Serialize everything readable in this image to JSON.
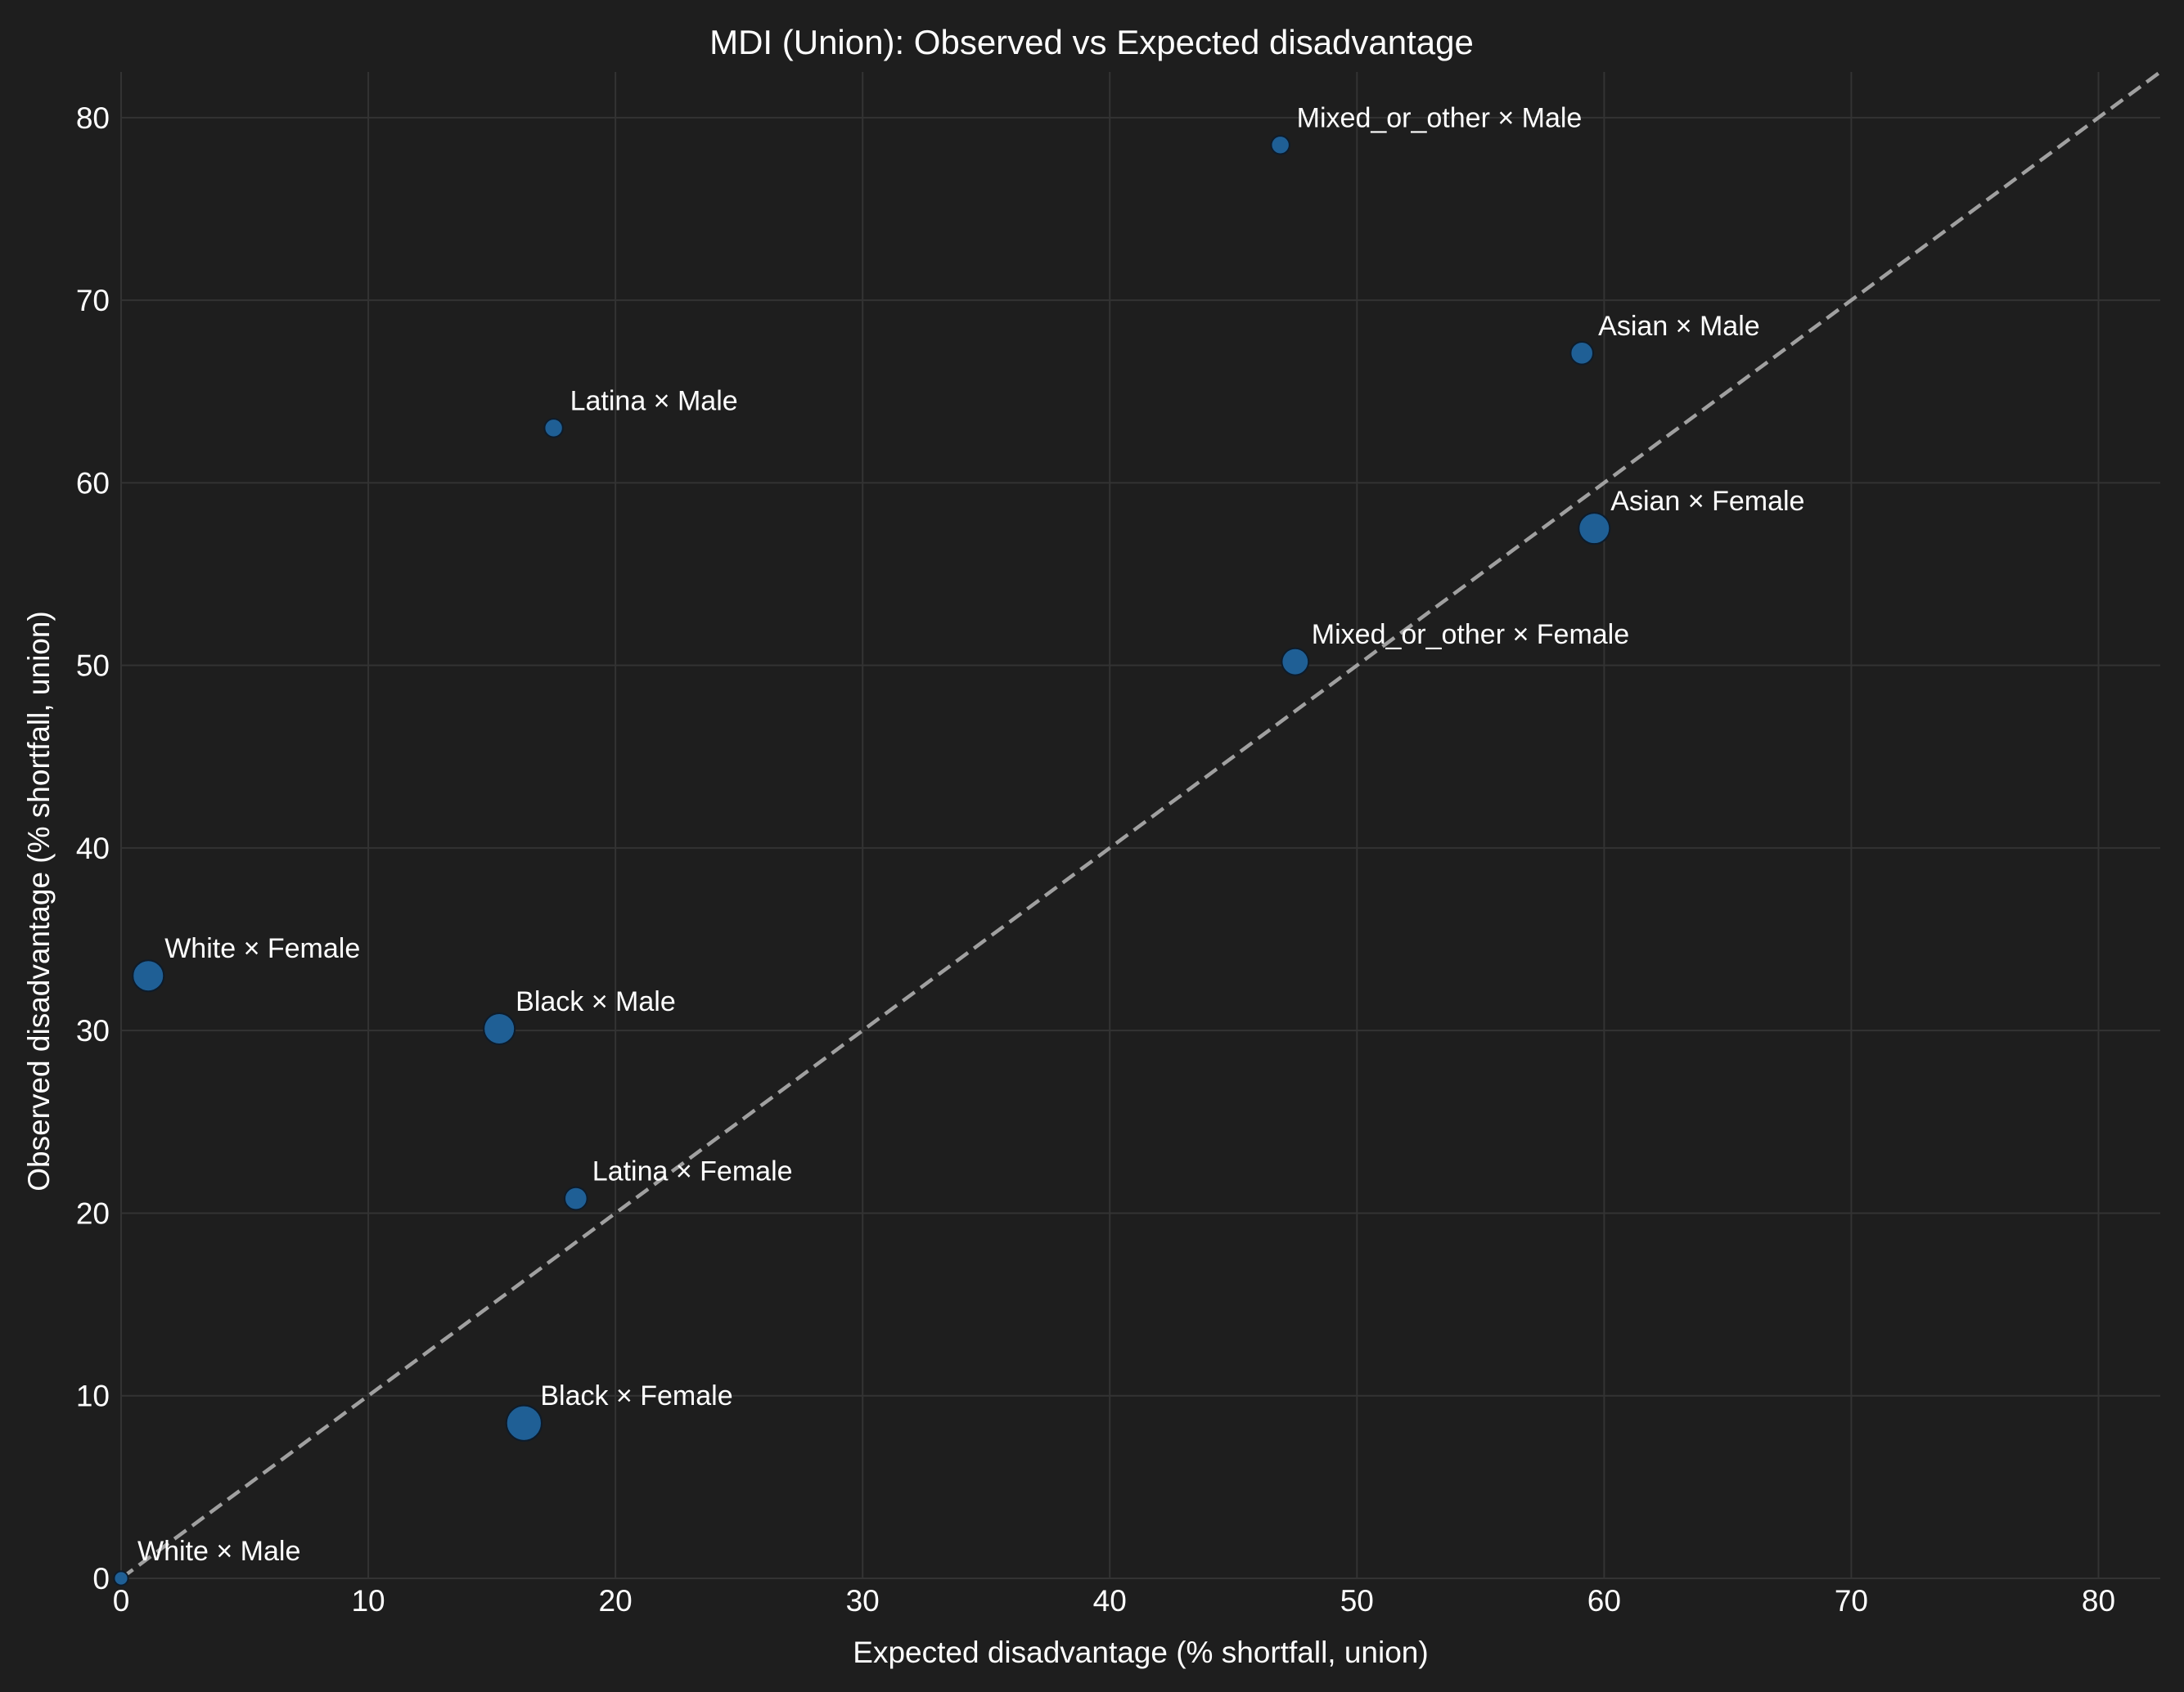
{
  "colors": {
    "background": "#1e1e1e",
    "grid": "#333333",
    "marker_fill": "#1f5f95",
    "marker_edge": "#0d1b2a",
    "reference_line": "#a0a0a0",
    "text": "#ffffff"
  },
  "chart_data": {
    "type": "scatter",
    "title": "MDI (Union): Observed vs Expected disadvantage",
    "xlabel": "Expected disadvantage (% shortfall, union)",
    "ylabel": "Observed disadvantage (% shortfall, union)",
    "xlim": [
      0,
      82.5
    ],
    "ylim": [
      0,
      82.5
    ],
    "xticks": [
      0,
      10,
      20,
      30,
      40,
      50,
      60,
      70,
      80
    ],
    "yticks": [
      0,
      10,
      20,
      30,
      40,
      50,
      60,
      70,
      80
    ],
    "grid": true,
    "reference_line": "y = x (dashed)",
    "points": [
      {
        "label": "White × Male",
        "x": 0.0,
        "y": 0.0,
        "size": 1
      },
      {
        "label": "White × Female",
        "x": 1.1,
        "y": 33.0,
        "size": 5
      },
      {
        "label": "Black × Male",
        "x": 15.3,
        "y": 30.1,
        "size": 5
      },
      {
        "label": "Black × Female",
        "x": 16.3,
        "y": 8.5,
        "size": 6
      },
      {
        "label": "Latina × Male",
        "x": 17.5,
        "y": 63.0,
        "size": 2
      },
      {
        "label": "Latina × Female",
        "x": 18.4,
        "y": 20.8,
        "size": 3
      },
      {
        "label": "Mixed_or_other × Male",
        "x": 46.9,
        "y": 78.5,
        "size": 2
      },
      {
        "label": "Mixed_or_other × Female",
        "x": 47.5,
        "y": 50.2,
        "size": 4
      },
      {
        "label": "Asian × Male",
        "x": 59.1,
        "y": 67.1,
        "size": 3
      },
      {
        "label": "Asian × Female",
        "x": 59.6,
        "y": 57.5,
        "size": 5
      }
    ]
  }
}
